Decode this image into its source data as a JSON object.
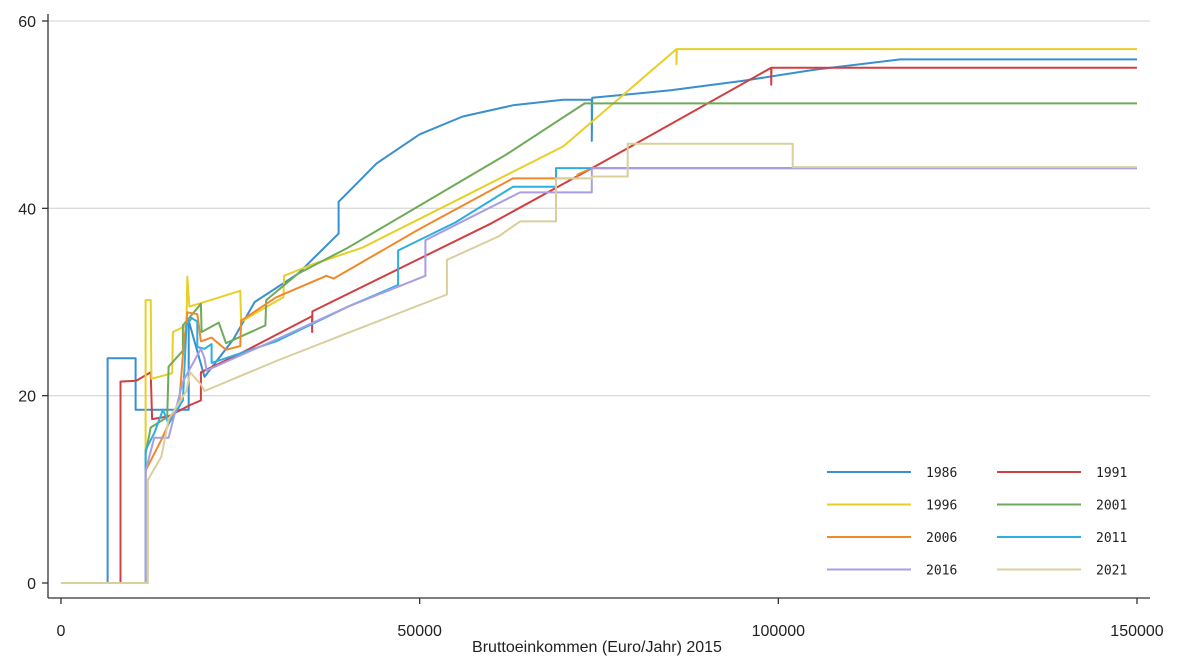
{
  "chart_data": {
    "type": "line",
    "title": "",
    "xlabel": "Bruttoeinkommen (Euro/Jahr) 2015",
    "ylabel": "",
    "xlim": [
      0,
      150000
    ],
    "ylim": [
      -1.2,
      60
    ],
    "x_ticks": [
      0,
      50000,
      100000,
      150000
    ],
    "y_ticks": [
      0,
      20,
      40,
      60
    ],
    "grid": "horizontal",
    "legend_position": "bottom-right",
    "series": [
      {
        "name": "1986",
        "color": "#3a8fd0",
        "points": [
          [
            0,
            0
          ],
          [
            6500,
            0
          ],
          [
            6500,
            24
          ],
          [
            10400,
            24
          ],
          [
            10400,
            18.5
          ],
          [
            17800,
            18.5
          ],
          [
            17800,
            28
          ],
          [
            20000,
            22
          ],
          [
            24000,
            26
          ],
          [
            27000,
            30
          ],
          [
            33000,
            33
          ],
          [
            38700,
            37.3
          ],
          [
            38700,
            40.7
          ],
          [
            44000,
            44.8
          ],
          [
            50000,
            47.9
          ],
          [
            56000,
            49.8
          ],
          [
            63000,
            51
          ],
          [
            70000,
            51.6
          ],
          [
            74000,
            51.6
          ],
          [
            74000,
            47.2
          ],
          [
            74050,
            51.8
          ],
          [
            85000,
            52.6
          ],
          [
            95000,
            53.6
          ],
          [
            105000,
            54.8
          ],
          [
            117000,
            55.9
          ],
          [
            150000,
            55.9
          ]
        ]
      },
      {
        "name": "1991",
        "color": "#d04040",
        "points": [
          [
            0,
            0
          ],
          [
            8300,
            0
          ],
          [
            8300,
            21.5
          ],
          [
            10500,
            21.6
          ],
          [
            12500,
            22.5
          ],
          [
            12700,
            17.5
          ],
          [
            15000,
            17.8
          ],
          [
            18000,
            19
          ],
          [
            19500,
            19.5
          ],
          [
            19500,
            22.5
          ],
          [
            25000,
            24.5
          ],
          [
            35000,
            28.5
          ],
          [
            35000,
            26.8
          ],
          [
            35050,
            29
          ],
          [
            60000,
            38.4
          ],
          [
            75000,
            44.7
          ],
          [
            99000,
            55
          ],
          [
            99000,
            53.2
          ],
          [
            99050,
            55
          ],
          [
            150000,
            55
          ]
        ]
      },
      {
        "name": "1996",
        "color": "#e7cf28",
        "points": [
          [
            0,
            0
          ],
          [
            11800,
            0
          ],
          [
            11800,
            30.2
          ],
          [
            12500,
            30.2
          ],
          [
            12600,
            21.8
          ],
          [
            15500,
            22.4
          ],
          [
            15600,
            26.8
          ],
          [
            17500,
            27.5
          ],
          [
            17600,
            32.7
          ],
          [
            17900,
            29.5
          ],
          [
            25000,
            31.2
          ],
          [
            25100,
            27.9
          ],
          [
            28000,
            29.2
          ],
          [
            31000,
            30.5
          ],
          [
            31100,
            32.8
          ],
          [
            35000,
            34
          ],
          [
            42000,
            35.8
          ],
          [
            55000,
            40.8
          ],
          [
            70000,
            46.6
          ],
          [
            85800,
            57
          ],
          [
            85800,
            55.4
          ],
          [
            85850,
            57
          ],
          [
            150000,
            57
          ]
        ]
      },
      {
        "name": "2001",
        "color": "#6eaa5a",
        "points": [
          [
            0,
            0
          ],
          [
            11800,
            0
          ],
          [
            11800,
            13.8
          ],
          [
            12500,
            16.6
          ],
          [
            14800,
            17.7
          ],
          [
            15000,
            23.1
          ],
          [
            17000,
            24.8
          ],
          [
            17000,
            27.5
          ],
          [
            19500,
            29.8
          ],
          [
            19600,
            26.8
          ],
          [
            22000,
            27.8
          ],
          [
            23000,
            25.6
          ],
          [
            28500,
            27.5
          ],
          [
            28600,
            30.2
          ],
          [
            33000,
            33
          ],
          [
            40000,
            35.8
          ],
          [
            50000,
            40.3
          ],
          [
            62000,
            45.7
          ],
          [
            73000,
            51.2
          ],
          [
            150000,
            51.2
          ]
        ]
      },
      {
        "name": "2006",
        "color": "#f0892a",
        "points": [
          [
            0,
            0
          ],
          [
            11800,
            0
          ],
          [
            11800,
            12
          ],
          [
            14000,
            15.3
          ],
          [
            16500,
            19.5
          ],
          [
            17000,
            24.4
          ],
          [
            17600,
            28.9
          ],
          [
            19000,
            28.7
          ],
          [
            19500,
            25.8
          ],
          [
            21000,
            26.2
          ],
          [
            23000,
            24.9
          ],
          [
            25000,
            25.3
          ],
          [
            25100,
            28
          ],
          [
            30000,
            30.5
          ],
          [
            37000,
            32.8
          ],
          [
            38000,
            32.5
          ],
          [
            50000,
            37.8
          ],
          [
            63000,
            43.2
          ],
          [
            72000,
            43.2
          ],
          [
            72000,
            43.6
          ],
          [
            74000,
            44.3
          ],
          [
            150000,
            44.3
          ]
        ]
      },
      {
        "name": "2011",
        "color": "#2eaee0",
        "points": [
          [
            0,
            0
          ],
          [
            11800,
            0
          ],
          [
            11800,
            14.2
          ],
          [
            13000,
            16
          ],
          [
            14200,
            18.5
          ],
          [
            15000,
            17
          ],
          [
            17000,
            19.5
          ],
          [
            17500,
            27.5
          ],
          [
            18200,
            28.3
          ],
          [
            19000,
            27.9
          ],
          [
            19000,
            25.2
          ],
          [
            20000,
            25
          ],
          [
            21000,
            25.5
          ],
          [
            21000,
            23.5
          ],
          [
            30000,
            25.8
          ],
          [
            40000,
            29.5
          ],
          [
            47000,
            31.8
          ],
          [
            47000,
            35.5
          ],
          [
            55000,
            38.5
          ],
          [
            63000,
            42.3
          ],
          [
            69000,
            42.3
          ],
          [
            69000,
            44.3
          ],
          [
            150000,
            44.3
          ]
        ]
      },
      {
        "name": "2016",
        "color": "#a99ee2",
        "points": [
          [
            0,
            0
          ],
          [
            11800,
            0
          ],
          [
            11800,
            12
          ],
          [
            13000,
            15.5
          ],
          [
            15000,
            15.5
          ],
          [
            17000,
            21.5
          ],
          [
            19500,
            25
          ],
          [
            20000,
            24
          ],
          [
            20300,
            22.7
          ],
          [
            30000,
            26
          ],
          [
            40000,
            29.5
          ],
          [
            50800,
            32.8
          ],
          [
            50800,
            36.6
          ],
          [
            57000,
            39
          ],
          [
            64000,
            41.7
          ],
          [
            74000,
            41.7
          ],
          [
            74000,
            44.3
          ],
          [
            150000,
            44.3
          ]
        ]
      },
      {
        "name": "2021",
        "color": "#d8cf9c",
        "points": [
          [
            0,
            0
          ],
          [
            12100,
            0
          ],
          [
            12100,
            11
          ],
          [
            14000,
            13.5
          ],
          [
            15000,
            17.5
          ],
          [
            17500,
            20.5
          ],
          [
            18000,
            22.5
          ],
          [
            19500,
            21.2
          ],
          [
            20000,
            20.5
          ],
          [
            30000,
            23.7
          ],
          [
            40000,
            26.7
          ],
          [
            53800,
            30.8
          ],
          [
            53800,
            34.5
          ],
          [
            61000,
            37
          ],
          [
            64000,
            38.6
          ],
          [
            69000,
            38.6
          ],
          [
            69000,
            43.2
          ],
          [
            74000,
            43.2
          ],
          [
            74000,
            43.4
          ],
          [
            79000,
            43.4
          ],
          [
            79000,
            46.9
          ],
          [
            102000,
            46.9
          ],
          [
            102000,
            44.4
          ],
          [
            150000,
            44.4
          ]
        ]
      }
    ]
  }
}
